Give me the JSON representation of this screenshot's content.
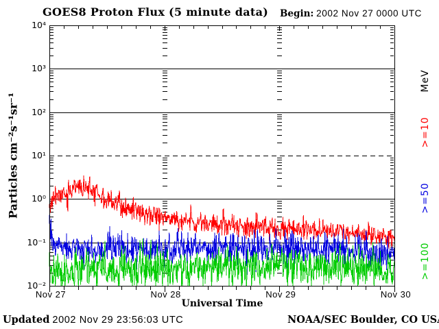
{
  "page": {
    "title": "GOES8 Proton Flux (5 minute data)",
    "begin_label": "Begin:",
    "begin_value": "2002 Nov 27 0000 UTC",
    "updated_label": "Updated",
    "updated_value": "2002 Nov 29 23:56:03 UTC",
    "credit": "NOAA/SEC Boulder, CO USA"
  },
  "chart_data": {
    "type": "line",
    "title": "GOES8 Proton Flux (5 minute data)",
    "xlabel": "Universal Time",
    "ylabel": "Particles cm⁻²s⁻¹sr⁻¹",
    "x_tick_labels": [
      "Nov 27",
      "Nov 28",
      "Nov 29",
      "Nov 30"
    ],
    "x_range_hours": 72,
    "x_major_tick_hours": 24,
    "x_minor_tick_hours": 3,
    "sample_interval_minutes": 5,
    "y_scale": "log",
    "ylim": [
      0.01,
      10000
    ],
    "y_tick_labels": [
      "10⁴",
      "10³",
      "10²",
      "10¹",
      "10⁰",
      "10⁻¹",
      "10⁻²"
    ],
    "y_tick_exponents": [
      4,
      3,
      2,
      1,
      0,
      -1,
      -2
    ],
    "threshold_value": 10,
    "grid": {
      "horizontal_decade_lines": "solid",
      "threshold_line_style": "dashed",
      "day_boundary_style": "dashed-at-log-minors"
    },
    "legend": {
      "units_label": "MeV",
      "position": "right-rotated"
    },
    "axis_color": "#000000",
    "background": "#FFFFFF",
    "series": [
      {
        "name": ">=10",
        "units": "MeV",
        "color": "#FF0000",
        "trend_keypoints_hour_flux": [
          [
            0,
            0.85
          ],
          [
            1,
            1.0
          ],
          [
            2,
            1.1
          ],
          [
            3,
            1.3
          ],
          [
            4,
            1.5
          ],
          [
            5,
            1.65
          ],
          [
            6,
            1.8
          ],
          [
            7,
            1.85
          ],
          [
            8,
            1.65
          ],
          [
            9,
            1.5
          ],
          [
            10,
            1.3
          ],
          [
            11,
            1.1
          ],
          [
            12,
            0.95
          ],
          [
            14,
            0.75
          ],
          [
            16,
            0.6
          ],
          [
            18,
            0.52
          ],
          [
            20,
            0.45
          ],
          [
            22,
            0.41
          ],
          [
            24,
            0.36
          ],
          [
            27,
            0.31
          ],
          [
            30,
            0.28
          ],
          [
            33,
            0.26
          ],
          [
            36,
            0.25
          ],
          [
            40,
            0.23
          ],
          [
            44,
            0.22
          ],
          [
            48,
            0.21
          ],
          [
            52,
            0.2
          ],
          [
            56,
            0.19
          ],
          [
            60,
            0.18
          ],
          [
            64,
            0.16
          ],
          [
            68,
            0.14
          ],
          [
            72,
            0.12
          ]
        ],
        "noise_log_sigma": 0.12,
        "spike_prob": 0.05,
        "spike_log": 0.18
      },
      {
        "name": ">=50",
        "units": "MeV",
        "color": "#0000E0",
        "trend_keypoints_hour_flux": [
          [
            0,
            0.2
          ],
          [
            0.5,
            0.13
          ],
          [
            1,
            0.09
          ],
          [
            2,
            0.075
          ],
          [
            4,
            0.068
          ],
          [
            8,
            0.065
          ],
          [
            12,
            0.065
          ],
          [
            18,
            0.068
          ],
          [
            24,
            0.07
          ],
          [
            30,
            0.072
          ],
          [
            36,
            0.075
          ],
          [
            42,
            0.075
          ],
          [
            48,
            0.073
          ],
          [
            54,
            0.07
          ],
          [
            60,
            0.068
          ],
          [
            64,
            0.06
          ],
          [
            68,
            0.055
          ],
          [
            72,
            0.05
          ]
        ],
        "noise_log_sigma": 0.17,
        "spike_prob": 0.06,
        "spike_log": 0.22
      },
      {
        "name": ">=100",
        "units": "MeV",
        "color": "#00CC00",
        "trend_keypoints_hour_flux": [
          [
            0,
            0.02
          ],
          [
            4,
            0.021
          ],
          [
            8,
            0.022
          ],
          [
            12,
            0.023
          ],
          [
            18,
            0.024
          ],
          [
            24,
            0.026
          ],
          [
            30,
            0.027
          ],
          [
            36,
            0.028
          ],
          [
            42,
            0.028
          ],
          [
            48,
            0.028
          ],
          [
            54,
            0.027
          ],
          [
            60,
            0.027
          ],
          [
            66,
            0.026
          ],
          [
            72,
            0.024
          ]
        ],
        "noise_log_sigma": 0.24,
        "spike_prob": 0.05,
        "spike_log": 0.2
      }
    ]
  }
}
